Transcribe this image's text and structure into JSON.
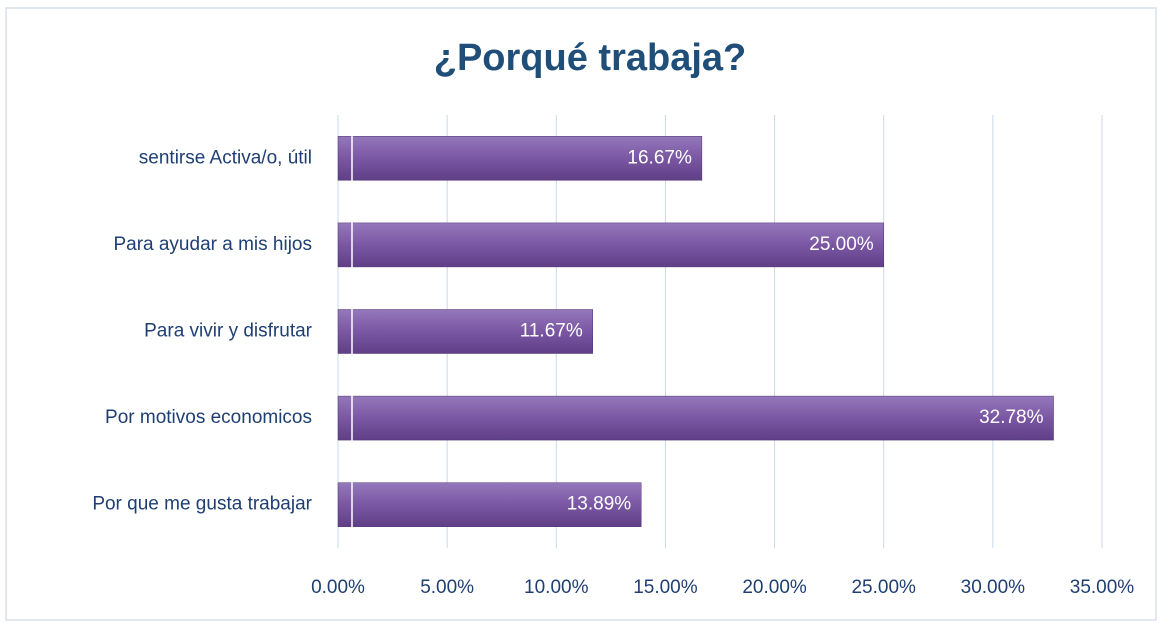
{
  "chart_data": {
    "type": "barh",
    "title": "¿Porqué trabaja?",
    "categories": [
      "sentirse Activa/o, útil",
      "Para ayudar a mis hijos",
      "Para vivir y disfrutar",
      "Por motivos economicos",
      "Por que me gusta trabajar"
    ],
    "values": [
      16.67,
      25.0,
      11.67,
      32.78,
      13.89
    ],
    "value_labels": [
      "16.67%",
      "25.00%",
      "11.67%",
      "32.78%",
      "13.89%"
    ],
    "color": "#7b57a3",
    "xlim": [
      0,
      35
    ],
    "xticks": [
      {
        "value": 0,
        "label": "0.00%"
      },
      {
        "value": 5,
        "label": "5.00%"
      },
      {
        "value": 10,
        "label": "10.00%"
      },
      {
        "value": 15,
        "label": "15.00%"
      },
      {
        "value": 20,
        "label": "20.00%"
      },
      {
        "value": 25,
        "label": "25.00%"
      },
      {
        "value": 30,
        "label": "30.00%"
      },
      {
        "value": 35,
        "label": "35.00%"
      }
    ],
    "grid": true
  }
}
